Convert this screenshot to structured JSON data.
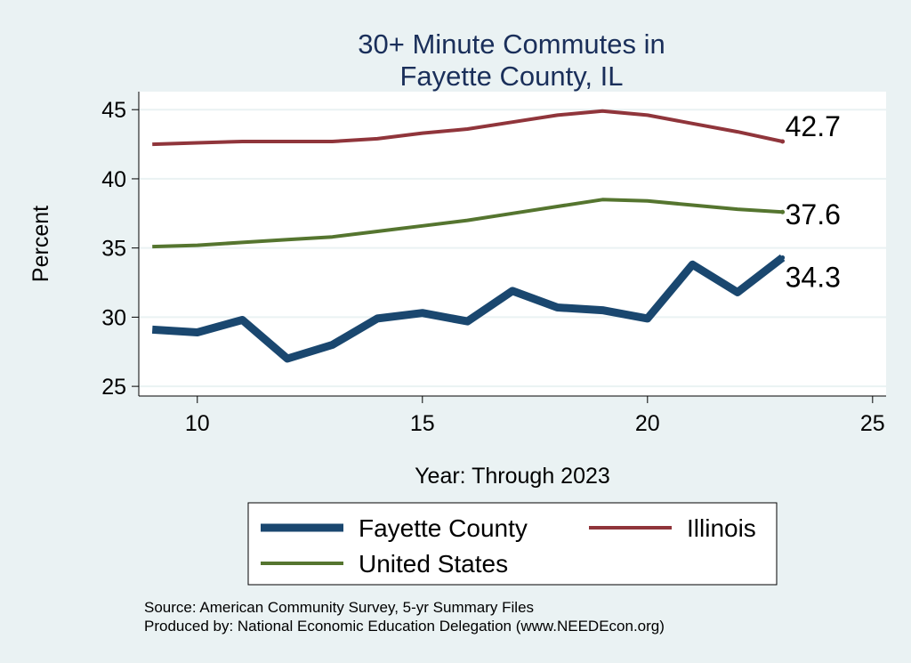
{
  "chart_data": {
    "type": "line",
    "title": [
      "30+ Minute Commutes in",
      "Fayette County, IL"
    ],
    "xlabel": "Year: Through 2023",
    "ylabel": "Percent",
    "xlim": [
      8.7,
      25.3
    ],
    "ylim": [
      24.3,
      46.3
    ],
    "xticks": [
      10,
      15,
      20,
      25
    ],
    "yticks": [
      25,
      30,
      35,
      40,
      45
    ],
    "grid": true,
    "x": [
      9,
      10,
      11,
      12,
      13,
      14,
      15,
      16,
      17,
      18,
      19,
      20,
      21,
      22,
      23
    ],
    "series": [
      {
        "name": "Fayette County",
        "color": "#1a476f",
        "values": [
          29.1,
          28.9,
          29.8,
          27.0,
          28.0,
          29.9,
          30.3,
          29.7,
          31.9,
          30.7,
          30.5,
          29.9,
          33.8,
          31.8,
          34.3
        ],
        "end_label": "34.3"
      },
      {
        "name": "Illinois",
        "color": "#90353b",
        "values": [
          42.5,
          42.6,
          42.7,
          42.7,
          42.7,
          42.9,
          43.3,
          43.6,
          44.1,
          44.6,
          44.9,
          44.6,
          44.0,
          43.4,
          42.7
        ],
        "end_label": "42.7"
      },
      {
        "name": "United States",
        "color": "#55752f",
        "values": [
          35.1,
          35.2,
          35.4,
          35.6,
          35.8,
          36.2,
          36.6,
          37.0,
          37.5,
          38.0,
          38.5,
          38.4,
          38.1,
          37.8,
          37.6
        ],
        "end_label": "37.6"
      }
    ],
    "legend_position": "bottom",
    "notes": [
      "Source: American Community Survey, 5-yr Summary Files",
      "Produced by: National Economic Education Delegation (www.NEEDEcon.org)"
    ]
  }
}
